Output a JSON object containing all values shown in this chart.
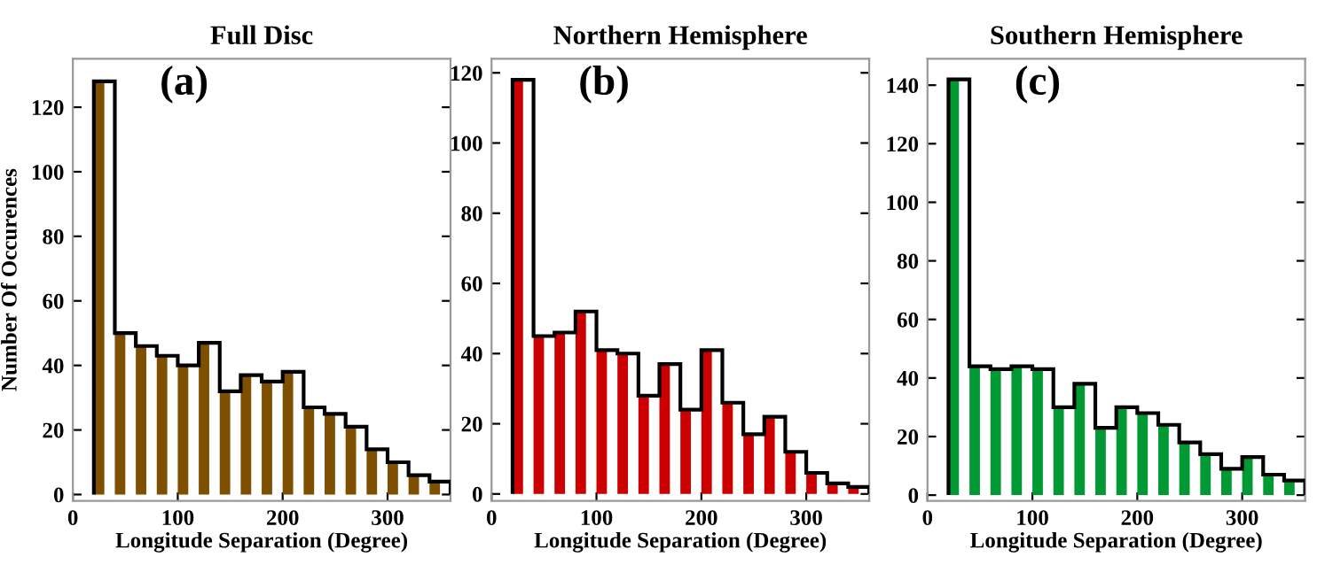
{
  "chart_data": [
    {
      "type": "histogram",
      "title": "Full Disc",
      "xlabel": "Longitude Separation (Degree)",
      "ylabel": "Number Of Occurences",
      "annotations": [
        "(a)"
      ],
      "xlim": [
        0,
        360
      ],
      "xticks": [
        0,
        100,
        200,
        300
      ],
      "ylim": [
        -2,
        135
      ],
      "yticks": [
        0,
        20,
        40,
        60,
        80,
        100,
        120
      ],
      "grid": false,
      "legend": false,
      "series": [
        {
          "type": "histogram",
          "color": "#000000",
          "bins": [
            20,
            40,
            60,
            80,
            100,
            120,
            140,
            160,
            180,
            200,
            220,
            240,
            260,
            280,
            300,
            320,
            340,
            360
          ],
          "values": [
            128,
            50,
            46,
            43,
            40,
            47,
            32,
            37,
            35,
            38,
            27,
            25,
            21,
            14,
            10,
            6,
            4
          ]
        },
        {
          "type": "bar",
          "color": "#7f4f00",
          "x": [
            25,
            45,
            65,
            85,
            105,
            125,
            145,
            165,
            185,
            205,
            225,
            245,
            265,
            285,
            305,
            325,
            345
          ],
          "values": [
            128,
            50,
            46,
            43,
            40,
            47,
            32,
            37,
            35,
            38,
            27,
            25,
            21,
            14,
            10,
            6,
            4
          ]
        }
      ]
    },
    {
      "type": "histogram",
      "title": "Northern Hemisphere",
      "xlabel": "Longitude Separation (Degree)",
      "annotations": [
        "(b)"
      ],
      "xlim": [
        0,
        360
      ],
      "xticks": [
        0,
        100,
        200,
        300
      ],
      "ylim": [
        -2,
        124
      ],
      "yticks": [
        0,
        20,
        40,
        60,
        80,
        100,
        120
      ],
      "grid": false,
      "legend": false,
      "series": [
        {
          "type": "histogram",
          "color": "#000000",
          "bins": [
            20,
            40,
            60,
            80,
            100,
            120,
            140,
            160,
            180,
            200,
            220,
            240,
            260,
            280,
            300,
            320,
            340,
            360
          ],
          "values": [
            118,
            45,
            46,
            52,
            41,
            40,
            28,
            37,
            24,
            41,
            26,
            17,
            22,
            12,
            6,
            3,
            2
          ]
        },
        {
          "type": "bar",
          "color": "#cc0000",
          "x": [
            25,
            45,
            65,
            85,
            105,
            125,
            145,
            165,
            185,
            205,
            225,
            245,
            265,
            285,
            305,
            325,
            345
          ],
          "values": [
            118,
            45,
            46,
            52,
            41,
            40,
            28,
            37,
            24,
            41,
            26,
            17,
            22,
            12,
            6,
            3,
            2
          ]
        }
      ]
    },
    {
      "type": "histogram",
      "title": "Southern Hemisphere",
      "xlabel": "Longitude Separation (Degree)",
      "annotations": [
        "(c)"
      ],
      "xlim": [
        0,
        360
      ],
      "xticks": [
        0,
        100,
        200,
        300
      ],
      "ylim": [
        -2,
        149
      ],
      "yticks": [
        0,
        20,
        40,
        60,
        80,
        100,
        120,
        140
      ],
      "grid": false,
      "legend": false,
      "series": [
        {
          "type": "histogram",
          "color": "#000000",
          "bins": [
            20,
            40,
            60,
            80,
            100,
            120,
            140,
            160,
            180,
            200,
            220,
            240,
            260,
            280,
            300,
            320,
            340,
            360
          ],
          "values": [
            142,
            44,
            43,
            44,
            43,
            30,
            38,
            23,
            30,
            28,
            24,
            18,
            14,
            9,
            13,
            7,
            5
          ]
        },
        {
          "type": "bar",
          "color": "#009933",
          "x": [
            25,
            45,
            65,
            85,
            105,
            125,
            145,
            165,
            185,
            205,
            225,
            245,
            265,
            285,
            305,
            325,
            345
          ],
          "values": [
            142,
            44,
            43,
            44,
            43,
            30,
            38,
            23,
            30,
            28,
            24,
            18,
            14,
            9,
            13,
            7,
            5
          ]
        }
      ]
    }
  ]
}
